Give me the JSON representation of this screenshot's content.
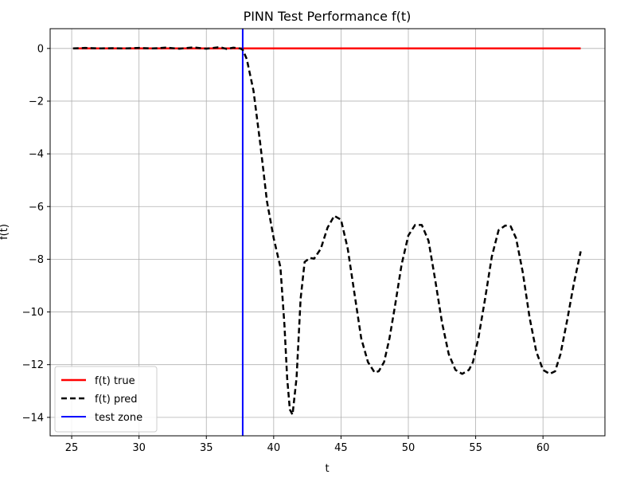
{
  "chart_data": {
    "type": "line",
    "title": "PINN Test Performance f(t)",
    "xlabel": "t",
    "ylabel": "f(t)",
    "xlim": [
      23.4,
      64.6
    ],
    "ylim": [
      -14.7,
      0.75
    ],
    "xticks": [
      25,
      30,
      35,
      40,
      45,
      50,
      55,
      60
    ],
    "yticks": [
      0,
      -2,
      -4,
      -6,
      -8,
      -10,
      -12,
      -14
    ],
    "xtick_labels": [
      "25",
      "30",
      "35",
      "40",
      "45",
      "50",
      "55",
      "60"
    ],
    "ytick_labels": [
      "0",
      "−2",
      "−4",
      "−6",
      "−8",
      "−10",
      "−12",
      "−14"
    ],
    "grid": true,
    "legend_position": "lower-left",
    "vline": {
      "name": "test zone",
      "x": 37.7,
      "color": "#0000ff"
    },
    "series": [
      {
        "name": "f(t) true",
        "color": "#ff0000",
        "style": "solid",
        "x": [
          25.1,
          62.8
        ],
        "y": [
          0,
          0
        ]
      },
      {
        "name": "f(t) pred",
        "color": "#000000",
        "style": "dashed",
        "x": [
          25.1,
          26.0,
          27.0,
          28.0,
          29.0,
          30.0,
          31.0,
          32.0,
          33.0,
          34.0,
          35.0,
          36.0,
          36.5,
          37.0,
          37.5,
          37.7,
          38.0,
          38.5,
          39.0,
          39.5,
          40.0,
          40.5,
          40.8,
          41.0,
          41.2,
          41.4,
          41.7,
          42.0,
          42.3,
          42.7,
          43.0,
          43.5,
          44.0,
          44.5,
          45.0,
          45.5,
          46.0,
          46.5,
          47.0,
          47.5,
          47.8,
          48.2,
          48.6,
          49.0,
          49.5,
          50.0,
          50.5,
          51.0,
          51.5,
          52.0,
          52.5,
          53.0,
          53.5,
          54.0,
          54.5,
          54.8,
          55.2,
          55.7,
          56.2,
          56.7,
          57.2,
          57.6,
          58.0,
          58.5,
          59.0,
          59.5,
          60.0,
          60.5,
          60.9,
          61.3,
          61.8,
          62.3,
          62.8
        ],
        "y": [
          0.0,
          0.02,
          0.0,
          0.01,
          0.0,
          0.02,
          0.0,
          0.03,
          -0.01,
          0.04,
          -0.01,
          0.05,
          -0.02,
          0.03,
          0.0,
          -0.05,
          -0.4,
          -1.6,
          -3.6,
          -5.8,
          -7.2,
          -8.3,
          -10.5,
          -12.5,
          -13.7,
          -13.9,
          -12.5,
          -9.5,
          -8.1,
          -7.95,
          -7.98,
          -7.6,
          -6.8,
          -6.35,
          -6.5,
          -7.6,
          -9.3,
          -11.0,
          -11.9,
          -12.3,
          -12.25,
          -11.9,
          -11.0,
          -9.8,
          -8.2,
          -7.1,
          -6.7,
          -6.7,
          -7.3,
          -8.8,
          -10.4,
          -11.6,
          -12.2,
          -12.35,
          -12.2,
          -11.9,
          -11.0,
          -9.5,
          -7.9,
          -6.9,
          -6.72,
          -6.75,
          -7.2,
          -8.5,
          -10.2,
          -11.5,
          -12.2,
          -12.35,
          -12.25,
          -11.6,
          -10.3,
          -8.9,
          -7.7
        ]
      }
    ]
  }
}
